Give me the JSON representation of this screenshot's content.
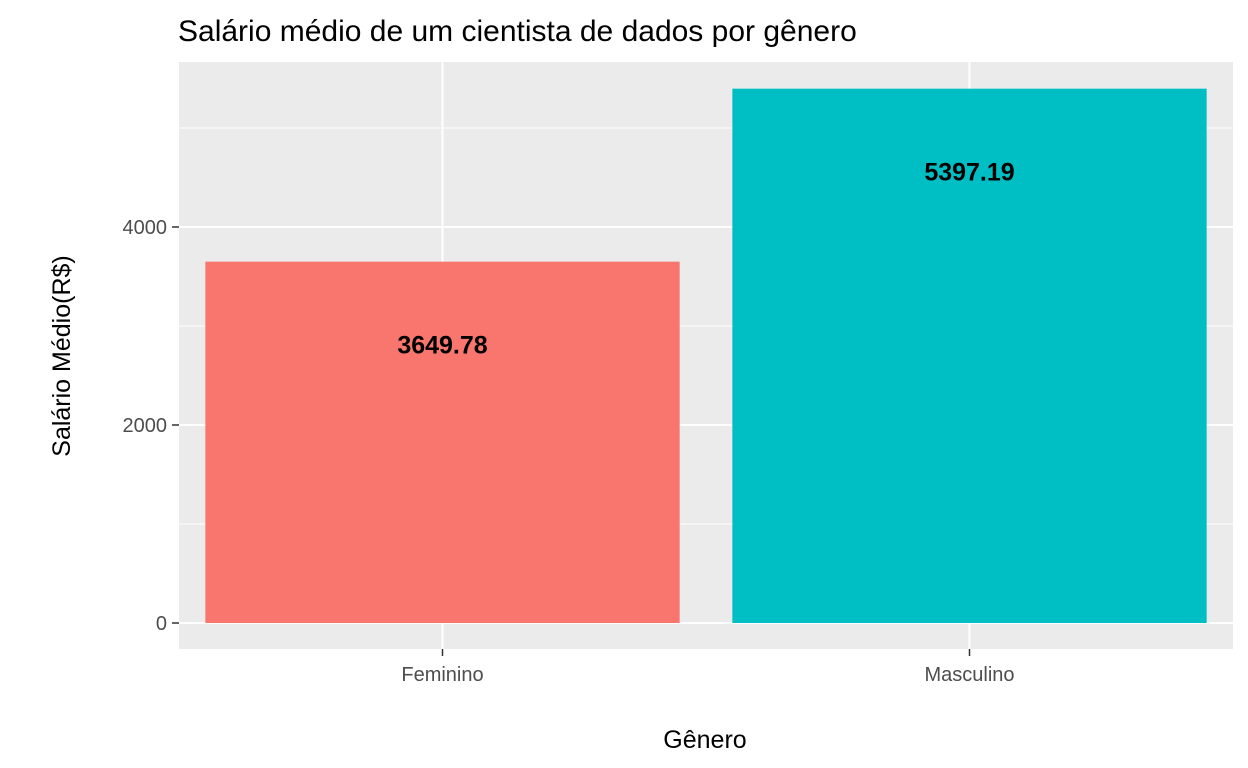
{
  "chart_data": {
    "type": "bar",
    "title": "Salário médio de um cientista de dados por gênero",
    "xlabel": "Gênero",
    "ylabel": "Salário Médio(R$)",
    "categories": [
      "Feminino",
      "Masculino"
    ],
    "values": [
      3649.78,
      5397.19
    ],
    "value_labels": [
      "3649.78",
      "5397.19"
    ],
    "colors": [
      "#F8766D",
      "#00BFC4"
    ],
    "ylim": [
      0,
      5650
    ],
    "y_ticks": [
      0,
      2000,
      4000
    ],
    "y_tick_labels": [
      "0",
      "2000",
      "4000"
    ],
    "grid": true,
    "legend": "none"
  }
}
